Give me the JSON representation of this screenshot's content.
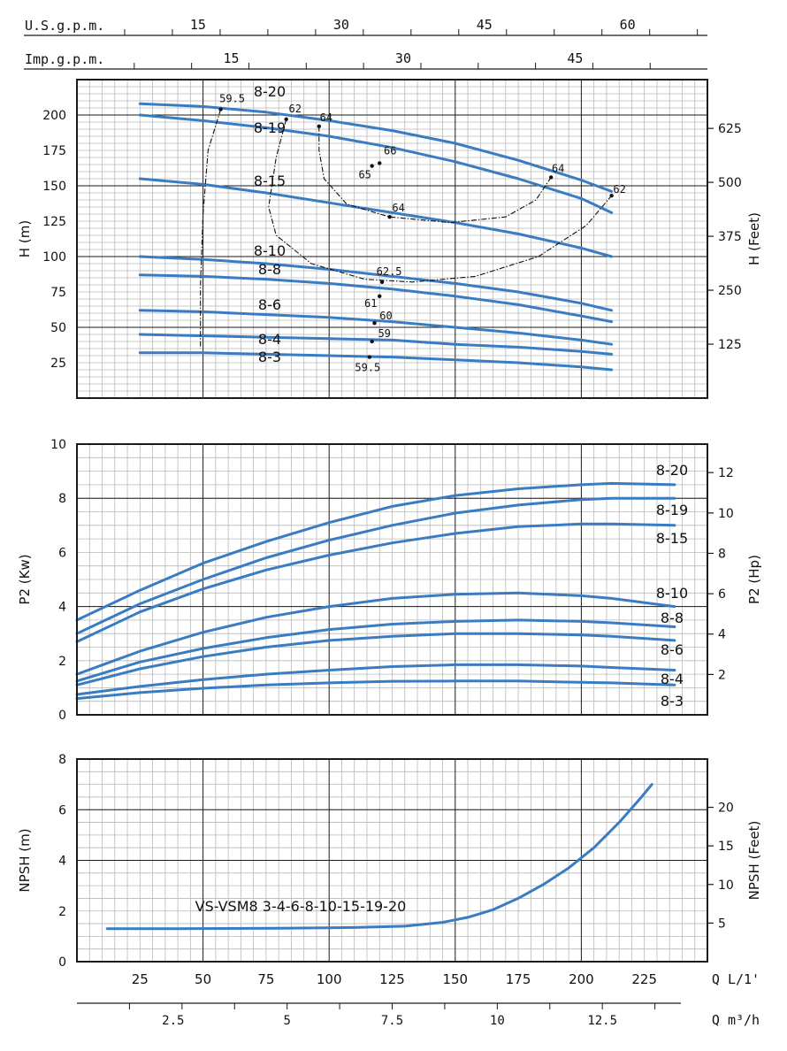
{
  "colors": {
    "curve": "#3a7cc2",
    "minor_grid": "#b8b8b8",
    "major_grid": "#1a1a1a",
    "frame": "#1a1a1a",
    "text": "#111111"
  },
  "chart_data": [
    {
      "type": "line",
      "id": "head",
      "ylabel": "H (m)",
      "y2label": "H (Feet)",
      "xlim": [
        0,
        250
      ],
      "ylim": [
        0,
        225
      ],
      "y2lim": [
        0,
        738
      ],
      "yticks": [
        25,
        50,
        75,
        100,
        125,
        150,
        175,
        200
      ],
      "y2ticks": [
        125,
        250,
        375,
        500,
        625
      ],
      "grid": true,
      "top_axes": [
        {
          "label": "U.S.g.p.m.",
          "factor": 3.785,
          "ticks": [
            "15",
            "30",
            "45",
            "60"
          ],
          "tick_values": [
            15,
            30,
            45,
            60
          ],
          "minor_step": 5
        },
        {
          "label": "Imp.g.p.m.",
          "factor": 4.546,
          "ticks": [
            "15",
            "30",
            "45"
          ],
          "tick_values": [
            15,
            30,
            45
          ],
          "minor_step": 5
        }
      ],
      "series": [
        {
          "name": "8-20",
          "x": [
            25,
            50,
            75,
            100,
            125,
            150,
            175,
            200,
            212
          ],
          "y": [
            208,
            206,
            202,
            196,
            189,
            180,
            168,
            154,
            146
          ]
        },
        {
          "name": "8-19",
          "x": [
            25,
            50,
            75,
            100,
            125,
            150,
            175,
            200,
            212
          ],
          "y": [
            200,
            196,
            191,
            185,
            177,
            167,
            155,
            141,
            131
          ]
        },
        {
          "name": "8-15",
          "x": [
            25,
            50,
            75,
            100,
            125,
            150,
            175,
            200,
            212
          ],
          "y": [
            155,
            151,
            145,
            138,
            131,
            124,
            116,
            106,
            100
          ]
        },
        {
          "name": "8-10",
          "x": [
            25,
            50,
            75,
            100,
            125,
            150,
            175,
            200,
            212
          ],
          "y": [
            100,
            98,
            95,
            91,
            86,
            81,
            75,
            67,
            62
          ]
        },
        {
          "name": "8-8",
          "x": [
            25,
            50,
            75,
            100,
            125,
            150,
            175,
            200,
            212
          ],
          "y": [
            87,
            86,
            84,
            81,
            77,
            72,
            66,
            58,
            54
          ]
        },
        {
          "name": "8-6",
          "x": [
            25,
            50,
            75,
            100,
            125,
            150,
            175,
            200,
            212
          ],
          "y": [
            62,
            61,
            59,
            57,
            54,
            50,
            46,
            41,
            38
          ]
        },
        {
          "name": "8-4",
          "x": [
            25,
            50,
            75,
            100,
            125,
            150,
            175,
            200,
            212
          ],
          "y": [
            45,
            44,
            43,
            42,
            41,
            38,
            36,
            33,
            31
          ]
        },
        {
          "name": "8-3",
          "x": [
            25,
            50,
            75,
            100,
            125,
            150,
            175,
            200,
            212
          ],
          "y": [
            32,
            32,
            31,
            30,
            29,
            27,
            25,
            22,
            20
          ]
        }
      ],
      "efficiency_points": [
        {
          "label": "59.5",
          "x": 57,
          "y": 204
        },
        {
          "label": "62",
          "x": 83,
          "y": 197
        },
        {
          "label": "64",
          "x": 96,
          "y": 192
        },
        {
          "label": "66",
          "x": 120,
          "y": 166
        },
        {
          "label": "65",
          "x": 117,
          "y": 164
        },
        {
          "label": "64",
          "x": 188,
          "y": 156
        },
        {
          "label": "62",
          "x": 212,
          "y": 143
        },
        {
          "label": "64",
          "x": 124,
          "y": 128
        },
        {
          "label": "62.5",
          "x": 121,
          "y": 82
        },
        {
          "label": "61",
          "x": 120,
          "y": 72
        },
        {
          "label": "60",
          "x": 118,
          "y": 53
        },
        {
          "label": "59",
          "x": 117,
          "y": 40
        },
        {
          "label": "59.5",
          "x": 116,
          "y": 29
        }
      ],
      "efficiency_contours": [
        [
          [
            57,
            204
          ],
          [
            52,
            175
          ],
          [
            50,
            130
          ],
          [
            49,
            80
          ],
          [
            49,
            40
          ],
          [
            49,
            35
          ]
        ],
        [
          [
            83,
            197
          ],
          [
            79,
            170
          ],
          [
            76,
            135
          ],
          [
            79,
            115
          ],
          [
            93,
            95
          ],
          [
            114,
            84
          ],
          [
            133,
            82
          ],
          [
            158,
            86
          ],
          [
            183,
            100
          ],
          [
            202,
            122
          ],
          [
            212,
            143
          ]
        ],
        [
          [
            96,
            192
          ],
          [
            96,
            175
          ],
          [
            98,
            155
          ],
          [
            107,
            137
          ],
          [
            124,
            128
          ],
          [
            148,
            124
          ],
          [
            170,
            128
          ],
          [
            182,
            140
          ],
          [
            188,
            156
          ]
        ]
      ]
    },
    {
      "type": "line",
      "id": "power",
      "ylabel": "P2 (Kw)",
      "y2label": "P2 (Hp)",
      "xlim": [
        0,
        250
      ],
      "ylim": [
        0,
        10
      ],
      "y2lim": [
        0,
        13.41
      ],
      "yticks": [
        0,
        2,
        4,
        6,
        8,
        10
      ],
      "y2ticks": [
        2,
        4,
        6,
        8,
        10,
        12
      ],
      "grid": true,
      "series": [
        {
          "name": "8-20",
          "x": [
            0,
            25,
            50,
            75,
            100,
            125,
            150,
            175,
            200,
            212,
            237
          ],
          "y": [
            3.5,
            4.6,
            5.6,
            6.4,
            7.1,
            7.7,
            8.1,
            8.35,
            8.5,
            8.55,
            8.5
          ]
        },
        {
          "name": "8-19",
          "x": [
            0,
            25,
            50,
            75,
            100,
            125,
            150,
            175,
            200,
            212,
            237
          ],
          "y": [
            3.0,
            4.1,
            5.0,
            5.8,
            6.45,
            7.0,
            7.45,
            7.75,
            7.95,
            8.0,
            8.0
          ]
        },
        {
          "name": "8-15",
          "x": [
            0,
            25,
            50,
            75,
            100,
            125,
            150,
            175,
            200,
            212,
            237
          ],
          "y": [
            2.7,
            3.8,
            4.65,
            5.35,
            5.9,
            6.35,
            6.7,
            6.95,
            7.05,
            7.05,
            7.0
          ]
        },
        {
          "name": "8-10",
          "x": [
            0,
            25,
            50,
            75,
            100,
            125,
            150,
            175,
            200,
            212,
            237
          ],
          "y": [
            1.5,
            2.35,
            3.05,
            3.6,
            4.0,
            4.3,
            4.45,
            4.5,
            4.4,
            4.3,
            4.0
          ]
        },
        {
          "name": "8-8",
          "x": [
            0,
            25,
            50,
            75,
            100,
            125,
            150,
            175,
            200,
            212,
            237
          ],
          "y": [
            1.25,
            1.95,
            2.45,
            2.85,
            3.15,
            3.35,
            3.45,
            3.5,
            3.45,
            3.4,
            3.25
          ]
        },
        {
          "name": "8-6",
          "x": [
            0,
            25,
            50,
            75,
            100,
            125,
            150,
            175,
            200,
            212,
            237
          ],
          "y": [
            1.1,
            1.7,
            2.15,
            2.5,
            2.75,
            2.9,
            3.0,
            3.0,
            2.95,
            2.9,
            2.75
          ]
        },
        {
          "name": "8-4",
          "x": [
            0,
            25,
            50,
            75,
            100,
            125,
            150,
            175,
            200,
            212,
            237
          ],
          "y": [
            0.75,
            1.05,
            1.3,
            1.5,
            1.65,
            1.78,
            1.85,
            1.85,
            1.8,
            1.75,
            1.65
          ]
        },
        {
          "name": "8-3",
          "x": [
            0,
            25,
            50,
            75,
            100,
            125,
            150,
            175,
            200,
            212,
            237
          ],
          "y": [
            0.6,
            0.82,
            0.98,
            1.1,
            1.18,
            1.24,
            1.25,
            1.25,
            1.2,
            1.18,
            1.1
          ]
        }
      ]
    },
    {
      "type": "line",
      "id": "npsh",
      "ylabel": "NPSH (m)",
      "y2label": "NPSH (Feet)",
      "annotation": "VS-VSM8 3-4-6-8-10-15-19-20",
      "xlim": [
        0,
        250
      ],
      "ylim": [
        0,
        8
      ],
      "y2lim": [
        0,
        26.25
      ],
      "yticks": [
        0,
        2,
        4,
        6,
        8
      ],
      "y2ticks": [
        5,
        10,
        15,
        20
      ],
      "grid": true,
      "xlabel": "Q L/1'",
      "xticks": [
        25,
        50,
        75,
        100,
        125,
        150,
        175,
        200,
        225
      ],
      "x2label": "Q m³/h",
      "x2ticks": [
        "2.5",
        "5",
        "7.5",
        "10",
        "12.5"
      ],
      "x2tick_values": [
        2.5,
        5,
        7.5,
        10,
        12.5
      ],
      "x2factor": 16.667,
      "series": [
        {
          "name": "NPSH",
          "x": [
            12,
            40,
            80,
            110,
            130,
            145,
            155,
            165,
            175,
            185,
            195,
            205,
            215,
            223,
            228
          ],
          "y": [
            1.3,
            1.3,
            1.32,
            1.35,
            1.4,
            1.55,
            1.75,
            2.05,
            2.5,
            3.05,
            3.7,
            4.5,
            5.5,
            6.4,
            7.0
          ]
        }
      ]
    }
  ]
}
